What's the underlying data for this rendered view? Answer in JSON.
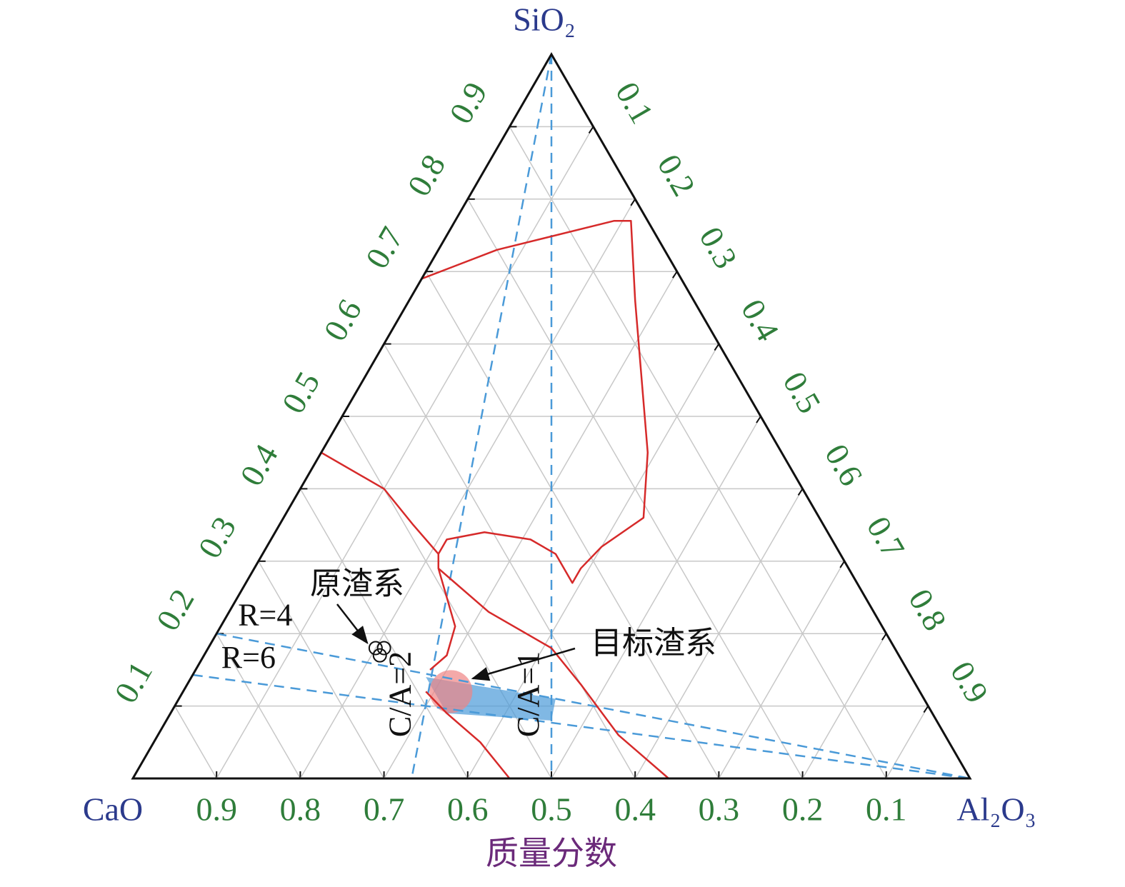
{
  "chart_data": {
    "type": "ternary",
    "vertices": {
      "left": "CaO",
      "top": "SiO₂",
      "right": "Al₂O₃"
    },
    "xlabel": "质量分数",
    "bottom_ticks": [
      0.9,
      0.8,
      0.7,
      0.6,
      0.5,
      0.4,
      0.3,
      0.2,
      0.1
    ],
    "left_ticks": [
      0.1,
      0.2,
      0.3,
      0.4,
      0.5,
      0.6,
      0.7,
      0.8,
      0.9
    ],
    "right_ticks": [
      0.1,
      0.2,
      0.3,
      0.4,
      0.5,
      0.6,
      0.7,
      0.8,
      0.9
    ],
    "grid": true,
    "line_color": "#4a9ad8",
    "boundary_color": "#d62a2a",
    "lines": [
      {
        "name": "C/A=2",
        "points": [
          [
            0,
            1
          ],
          [
            0.667,
            0
          ]
        ]
      },
      {
        "name": "C/A=1",
        "points": [
          [
            0,
            1
          ],
          [
            0.5,
            0
          ]
        ]
      },
      {
        "name": "R=4",
        "points": [
          [
            0.8,
            0.2
          ],
          [
            0,
            0
          ]
        ]
      },
      {
        "name": "R=6",
        "points": [
          [
            0.857,
            0.143
          ],
          [
            0,
            0
          ]
        ]
      }
    ],
    "boundaries": [
      {
        "points": [
          [
            0.31,
            0.69
          ],
          [
            0.2,
            0.73
          ],
          [
            0.04,
            0.77
          ],
          [
            0.02,
            0.77
          ],
          [
            0.07,
            0.66
          ],
          [
            0.13,
            0.52
          ],
          [
            0.16,
            0.45
          ],
          [
            0.21,
            0.36
          ],
          [
            0.28,
            0.32
          ],
          [
            0.32,
            0.29
          ],
          [
            0.34,
            0.27
          ],
          [
            0.34,
            0.31
          ],
          [
            0.36,
            0.33
          ],
          [
            0.41,
            0.34
          ],
          [
            0.46,
            0.33
          ],
          [
            0.48,
            0.31
          ]
        ]
      },
      {
        "points": [
          [
            0.55,
            0.45
          ],
          [
            0.5,
            0.4
          ],
          [
            0.49,
            0.35
          ],
          [
            0.48,
            0.31
          ]
        ]
      },
      {
        "points": [
          [
            0.48,
            0.31
          ],
          [
            0.49,
            0.29
          ],
          [
            0.51,
            0.21
          ],
          [
            0.54,
            0.17
          ],
          [
            0.57,
            0.15
          ]
        ]
      },
      {
        "points": [
          [
            0.49,
            0.29
          ],
          [
            0.46,
            0.23
          ],
          [
            0.41,
            0.18
          ],
          [
            0.4,
            0.13
          ],
          [
            0.39,
            0.06
          ],
          [
            0.36,
            0
          ]
        ]
      },
      {
        "points": [
          [
            0.59,
            0.12
          ],
          [
            0.58,
            0.09
          ],
          [
            0.56,
            0.05
          ],
          [
            0.55,
            0
          ]
        ]
      }
    ],
    "original": {
      "label": "原渣系",
      "points": [
        [
          0.62,
          0.17
        ],
        [
          0.61,
          0.18
        ],
        [
          0.62,
          0.18
        ]
      ]
    },
    "target": {
      "label": "目标渣系",
      "region": [
        [
          0.58,
          0.14
        ],
        [
          0.58,
          0.09
        ],
        [
          0.46,
          0.08
        ],
        [
          0.44,
          0.11
        ]
      ],
      "center": [
        0.56,
        0.12
      ]
    }
  }
}
